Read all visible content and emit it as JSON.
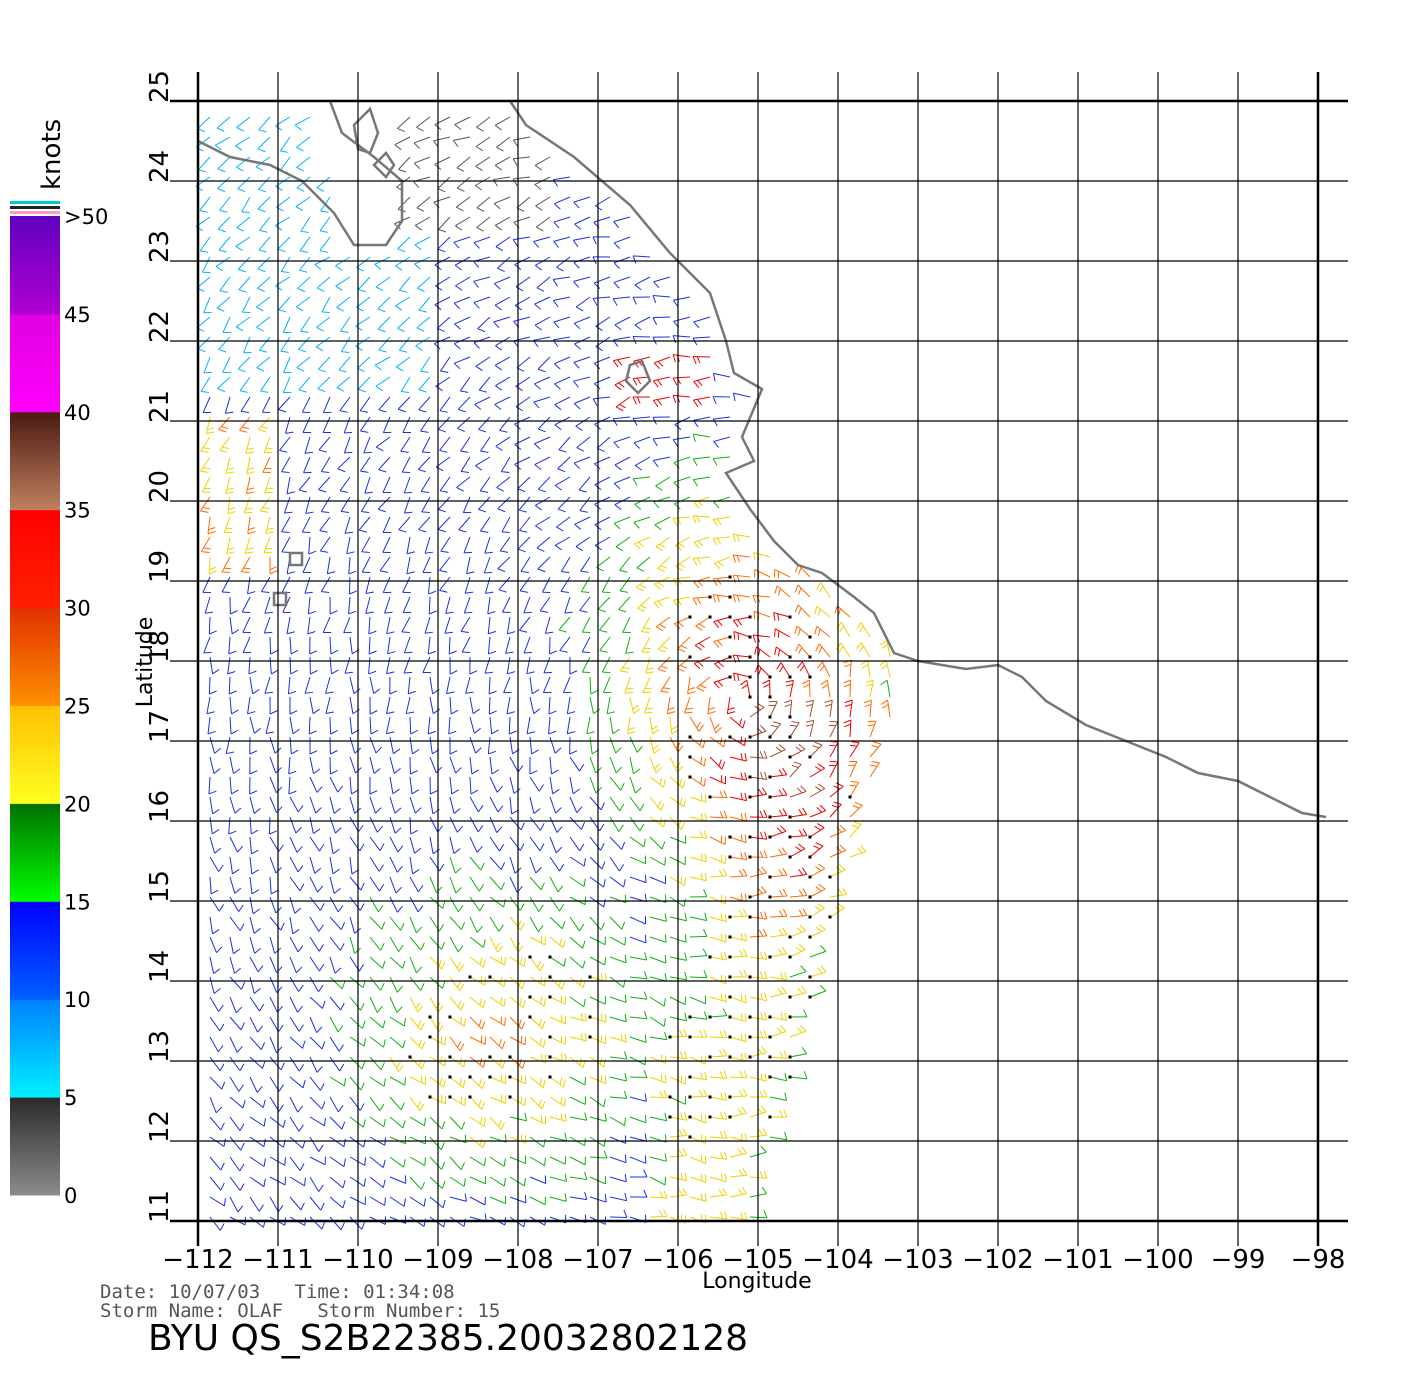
{
  "chart_data": {
    "type": "wind-vector-map",
    "xlabel": "Longitude",
    "ylabel": "Latitude",
    "xlim": [
      -112,
      -98
    ],
    "ylim": [
      11,
      25
    ],
    "x_ticks": [
      "−112",
      "−111",
      "−110",
      "−109",
      "−108",
      "−107",
      "−106",
      "−105",
      "−104",
      "−103",
      "−102",
      "−101",
      "−100",
      "−99",
      "−98"
    ],
    "y_ticks": [
      "11",
      "12",
      "13",
      "14",
      "15",
      "16",
      "17",
      "18",
      "19",
      "20",
      "21",
      "22",
      "23",
      "24",
      "25"
    ],
    "grid": true,
    "colorbar": {
      "unit": "knots",
      "labels": [
        "0",
        "5",
        "10",
        "15",
        "20",
        "25",
        "30",
        "35",
        "40",
        "45",
        ">50"
      ],
      "bands": [
        {
          "from": 0,
          "to": 5,
          "top": "#2a2a2a",
          "bottom": "#8c8c8c"
        },
        {
          "from": 5,
          "to": 10,
          "top": "#0080ff",
          "bottom": "#00f0ff"
        },
        {
          "from": 10,
          "to": 15,
          "top": "#0000ff",
          "bottom": "#0060ff"
        },
        {
          "from": 15,
          "to": 20,
          "top": "#007000",
          "bottom": "#00ff00"
        },
        {
          "from": 20,
          "to": 25,
          "top": "#ffc000",
          "bottom": "#ffff20"
        },
        {
          "from": 25,
          "to": 30,
          "top": "#e03000",
          "bottom": "#ff9000"
        },
        {
          "from": 30,
          "to": 35,
          "top": "#ff0000",
          "bottom": "#ff2000"
        },
        {
          "from": 35,
          "to": 40,
          "top": "#4a1a10",
          "bottom": "#c08060"
        },
        {
          "from": 40,
          "to": 45,
          "top": "#e000e0",
          "bottom": "#ff00ff"
        },
        {
          "from": 45,
          "to": 50,
          "top": "#6000c0",
          "bottom": "#b000d0"
        }
      ]
    },
    "coastline": [
      [
        -112,
        24.5
      ],
      [
        -111.6,
        24.3
      ],
      [
        -111.1,
        24.2
      ],
      [
        -110.7,
        24
      ],
      [
        -110.3,
        23.6
      ],
      [
        -110.05,
        23.2
      ],
      [
        -109.65,
        23.2
      ],
      [
        -109.45,
        23.5
      ],
      [
        -109.45,
        24
      ],
      [
        -109.8,
        24.3
      ],
      [
        -110.2,
        24.6
      ],
      [
        -110.35,
        25
      ]
    ],
    "coastline_mainland": [
      [
        -108.1,
        25
      ],
      [
        -107.9,
        24.7
      ],
      [
        -107.3,
        24.3
      ],
      [
        -106.6,
        23.7
      ],
      [
        -106.1,
        23.1
      ],
      [
        -105.6,
        22.6
      ],
      [
        -105.4,
        22
      ],
      [
        -105.3,
        21.6
      ],
      [
        -104.95,
        21.4
      ],
      [
        -105.2,
        20.8
      ],
      [
        -105.05,
        20.5
      ],
      [
        -105.4,
        20.35
      ],
      [
        -105.1,
        19.9
      ],
      [
        -104.8,
        19.5
      ],
      [
        -104.5,
        19.2
      ],
      [
        -104.2,
        19.1
      ],
      [
        -103.8,
        18.8
      ],
      [
        -103.55,
        18.6
      ],
      [
        -103.3,
        18.1
      ],
      [
        -103,
        18
      ],
      [
        -102.4,
        17.9
      ],
      [
        -102,
        17.95
      ],
      [
        -101.7,
        17.8
      ],
      [
        -101.4,
        17.5
      ],
      [
        -100.9,
        17.2
      ],
      [
        -100.4,
        17
      ],
      [
        -99.9,
        16.8
      ],
      [
        -99.5,
        16.6
      ],
      [
        -99,
        16.5
      ],
      [
        -98.6,
        16.3
      ],
      [
        -98.2,
        16.1
      ],
      [
        -97.9,
        16.05
      ]
    ],
    "islands": [
      [
        [
          -109.85,
          24.35
        ],
        [
          -109.75,
          24.6
        ],
        [
          -109.85,
          24.9
        ],
        [
          -110.05,
          24.7
        ],
        [
          -110.0,
          24.4
        ]
      ],
      [
        [
          -109.65,
          24.05
        ],
        [
          -109.55,
          24.2
        ],
        [
          -109.65,
          24.35
        ],
        [
          -109.8,
          24.2
        ]
      ],
      [
        [
          -106.6,
          21.7
        ],
        [
          -106.45,
          21.75
        ],
        [
          -106.35,
          21.5
        ],
        [
          -106.5,
          21.35
        ],
        [
          -106.65,
          21.5
        ]
      ],
      [
        [
          -111.05,
          18.85
        ],
        [
          -110.9,
          18.85
        ],
        [
          -110.9,
          18.7
        ],
        [
          -111.05,
          18.7
        ]
      ],
      [
        [
          -110.85,
          19.35
        ],
        [
          -110.7,
          19.35
        ],
        [
          -110.7,
          19.2
        ],
        [
          -110.85,
          19.2
        ]
      ]
    ]
  },
  "info": {
    "date_line": "Date: 10/07/03   Time: 01:34:08",
    "storm_line": "Storm Name: OLAF   Storm Number: 15",
    "product": "BYU QS_S2B22385.20032802128"
  }
}
